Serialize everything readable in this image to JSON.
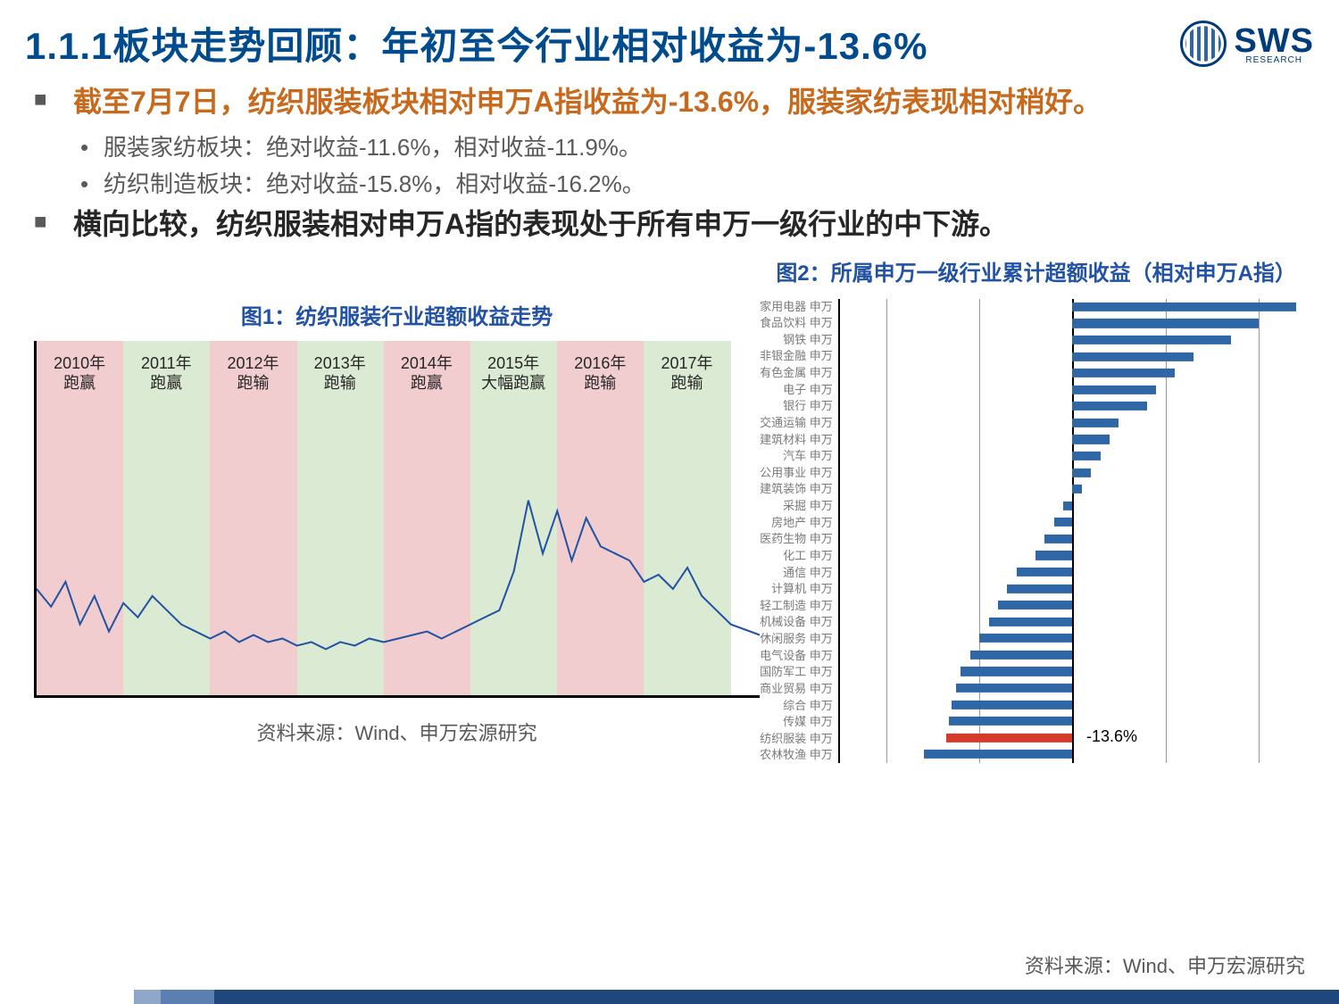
{
  "title": "1.1.1板块走势回顾：年初至今行业相对收益为-13.6%",
  "logo": {
    "text": "SWS",
    "sub": "RESEARCH"
  },
  "bullets": {
    "lv1a": "截至7月7日，纺织服装板块相对申万A指收益为-13.6%，服装家纺表现相对稍好。",
    "lv2a": "服装家纺板块：绝对收益-11.6%，相对收益-11.9%。",
    "lv2b": "纺织制造板块：绝对收益-15.8%，相对收益-16.2%。",
    "lv1b": "横向比较，纺织服装相对申万A指的表现处于所有申万一级行业的中下游。"
  },
  "fig1": {
    "title": "图1：纺织服装行业超额收益走势",
    "bands": [
      {
        "label_top": "2010年",
        "label_bot": "跑赢",
        "fill": "#f2cdd0",
        "w": 12
      },
      {
        "label_top": "2011年",
        "label_bot": "跑赢",
        "fill": "#dbead3",
        "w": 12
      },
      {
        "label_top": "2012年",
        "label_bot": "跑输",
        "fill": "#f2cdd0",
        "w": 12
      },
      {
        "label_top": "2013年",
        "label_bot": "跑输",
        "fill": "#dbead3",
        "w": 12
      },
      {
        "label_top": "2014年",
        "label_bot": "跑赢",
        "fill": "#f2cdd0",
        "w": 12
      },
      {
        "label_top": "2015年",
        "label_bot": "大幅跑赢",
        "fill": "#dbead3",
        "w": 12
      },
      {
        "label_top": "2016年",
        "label_bot": "跑输",
        "fill": "#f2cdd0",
        "w": 12
      },
      {
        "label_top": "2017年",
        "label_bot": "跑输",
        "fill": "#dbead3",
        "w": 12
      }
    ],
    "line": {
      "stroke": "#2152a3",
      "stroke_width": 2,
      "x": [
        0,
        2,
        4,
        6,
        8,
        10,
        12,
        14,
        16,
        18,
        20,
        22,
        24,
        26,
        28,
        30,
        32,
        34,
        36,
        38,
        40,
        42,
        44,
        46,
        48,
        50,
        52,
        54,
        56,
        58,
        60,
        62,
        64,
        66,
        68,
        70,
        72,
        74,
        76,
        78,
        80,
        82,
        84,
        86,
        88,
        90,
        92,
        94,
        96,
        100
      ],
      "y": [
        70,
        75,
        68,
        80,
        72,
        82,
        74,
        78,
        72,
        76,
        80,
        82,
        84,
        82,
        85,
        83,
        85,
        84,
        86,
        85,
        87,
        85,
        86,
        84,
        85,
        84,
        83,
        82,
        84,
        82,
        80,
        78,
        76,
        65,
        45,
        60,
        48,
        62,
        50,
        58,
        60,
        62,
        68,
        66,
        70,
        64,
        72,
        76,
        80,
        83
      ]
    },
    "source": "资料来源：Wind、申万宏源研究"
  },
  "fig2": {
    "title": "图2：所属申万一级行业累计超额收益（相对申万A指）",
    "xlim": [
      -25,
      25
    ],
    "grid_x": [
      -20,
      -10,
      10,
      20
    ],
    "highlight": "纺织服装  申万",
    "highlight_value_label": "-13.6%",
    "items": [
      {
        "label": "家用电器  申万",
        "v": 24
      },
      {
        "label": "食品饮料  申万",
        "v": 20
      },
      {
        "label": "钢铁  申万",
        "v": 17
      },
      {
        "label": "非银金融  申万",
        "v": 13
      },
      {
        "label": "有色金属  申万",
        "v": 11
      },
      {
        "label": "电子  申万",
        "v": 9
      },
      {
        "label": "银行  申万",
        "v": 8
      },
      {
        "label": "交通运输  申万",
        "v": 5
      },
      {
        "label": "建筑材料  申万",
        "v": 4
      },
      {
        "label": "汽车  申万",
        "v": 3
      },
      {
        "label": "公用事业  申万",
        "v": 2
      },
      {
        "label": "建筑装饰  申万",
        "v": 1
      },
      {
        "label": "采掘  申万",
        "v": -1
      },
      {
        "label": "房地产  申万",
        "v": -2
      },
      {
        "label": "医药生物  申万",
        "v": -3
      },
      {
        "label": "化工  申万",
        "v": -4
      },
      {
        "label": "通信  申万",
        "v": -6
      },
      {
        "label": "计算机  申万",
        "v": -7
      },
      {
        "label": "轻工制造  申万",
        "v": -8
      },
      {
        "label": "机械设备  申万",
        "v": -9
      },
      {
        "label": "休闲服务  申万",
        "v": -10
      },
      {
        "label": "电气设备  申万",
        "v": -11
      },
      {
        "label": "国防军工  申万",
        "v": -12
      },
      {
        "label": "商业贸易  申万",
        "v": -12.5
      },
      {
        "label": "综合  申万",
        "v": -13
      },
      {
        "label": "传媒  申万",
        "v": -13.3
      },
      {
        "label": "纺织服装  申万",
        "v": -13.6
      },
      {
        "label": "农林牧渔  申万",
        "v": -16
      }
    ],
    "bar_color": "#2f66a5",
    "highlight_color": "#d33b2b",
    "source": "资料来源：Wind、申万宏源研究"
  }
}
